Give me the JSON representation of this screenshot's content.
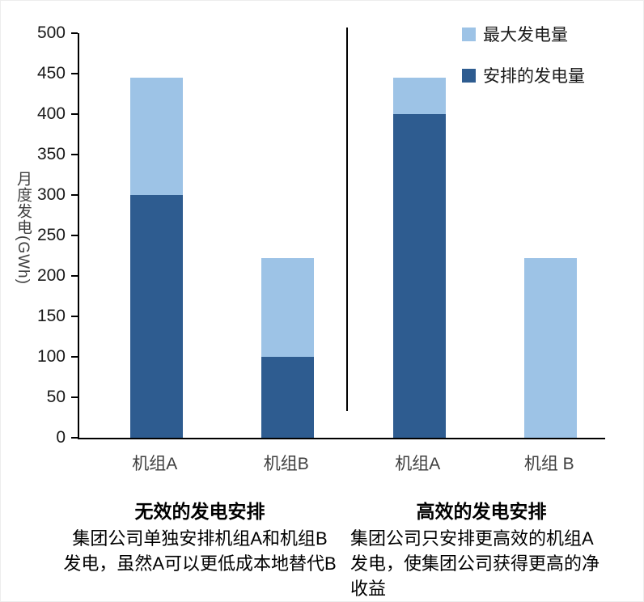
{
  "chart_data": {
    "type": "bar",
    "stacked": true,
    "title": "",
    "ylabel": "月度发电(GWh)",
    "xlabel": "",
    "ylim": [
      0,
      500
    ],
    "yticks": [
      0,
      50,
      100,
      150,
      200,
      250,
      300,
      350,
      400,
      450,
      500
    ],
    "categories": [
      "机组A",
      "机组B",
      "机组A",
      "机组 B"
    ],
    "series": [
      {
        "key": "max-generation",
        "name": "最大发电量",
        "color": "#9dc3e6",
        "values": [
          445,
          222,
          445,
          222
        ]
      },
      {
        "key": "scheduled-generation",
        "name": "安排的发电量",
        "color": "#2e5c90",
        "values": [
          300,
          100,
          400,
          0
        ]
      }
    ],
    "legend": [
      {
        "key": "max-generation",
        "label": "最大发电量",
        "color": "#9dc3e6"
      },
      {
        "key": "scheduled-generation",
        "label": "安排的发电量",
        "color": "#2e5c90"
      }
    ],
    "grid": false,
    "legend_position": "top-right",
    "divider_between_groups": true
  },
  "captions": {
    "left": {
      "title": "无效的发电安排",
      "body": "集团公司单独安排机组A和机组B\n发电，虽然A可以更低成本地替代B"
    },
    "right": {
      "title": "高效的发电安排",
      "body": "集团公司只安排更高效的机组A\n发电，使集团公司获得更高的净\n收益"
    }
  },
  "colors": {
    "axis": "#000000",
    "tick_label": "#1a1a1a",
    "category_label": "#3f3f3f",
    "divider": "#000000",
    "background": "#ffffff"
  }
}
